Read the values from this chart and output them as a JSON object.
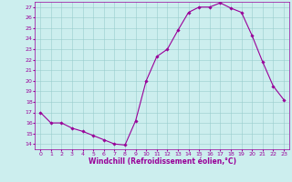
{
  "x": [
    0,
    1,
    2,
    3,
    4,
    5,
    6,
    7,
    8,
    9,
    10,
    11,
    12,
    13,
    14,
    15,
    16,
    17,
    18,
    19,
    20,
    21,
    22,
    23
  ],
  "y": [
    17.0,
    16.0,
    16.0,
    15.5,
    15.2,
    14.8,
    14.4,
    14.0,
    13.9,
    16.2,
    20.0,
    22.3,
    23.0,
    24.8,
    26.5,
    27.0,
    27.0,
    27.4,
    26.9,
    26.5,
    24.3,
    21.8,
    19.5,
    18.2
  ],
  "ylim_min": 13.5,
  "ylim_max": 27.5,
  "xlim_min": -0.5,
  "xlim_max": 23.5,
  "yticks": [
    14,
    15,
    16,
    17,
    18,
    19,
    20,
    21,
    22,
    23,
    24,
    25,
    26,
    27
  ],
  "xticks": [
    0,
    1,
    2,
    3,
    4,
    5,
    6,
    7,
    8,
    9,
    10,
    11,
    12,
    13,
    14,
    15,
    16,
    17,
    18,
    19,
    20,
    21,
    22,
    23
  ],
  "xlabel": "Windchill (Refroidissement éolien,°C)",
  "line_color": "#990099",
  "marker": "D",
  "marker_size": 1.8,
  "bg_color": "#cceeee",
  "grid_color": "#99cccc",
  "xlabel_color": "#990099",
  "tick_color": "#990099",
  "tick_fontsize": 4.5,
  "xlabel_fontsize": 5.5,
  "linewidth": 0.8
}
